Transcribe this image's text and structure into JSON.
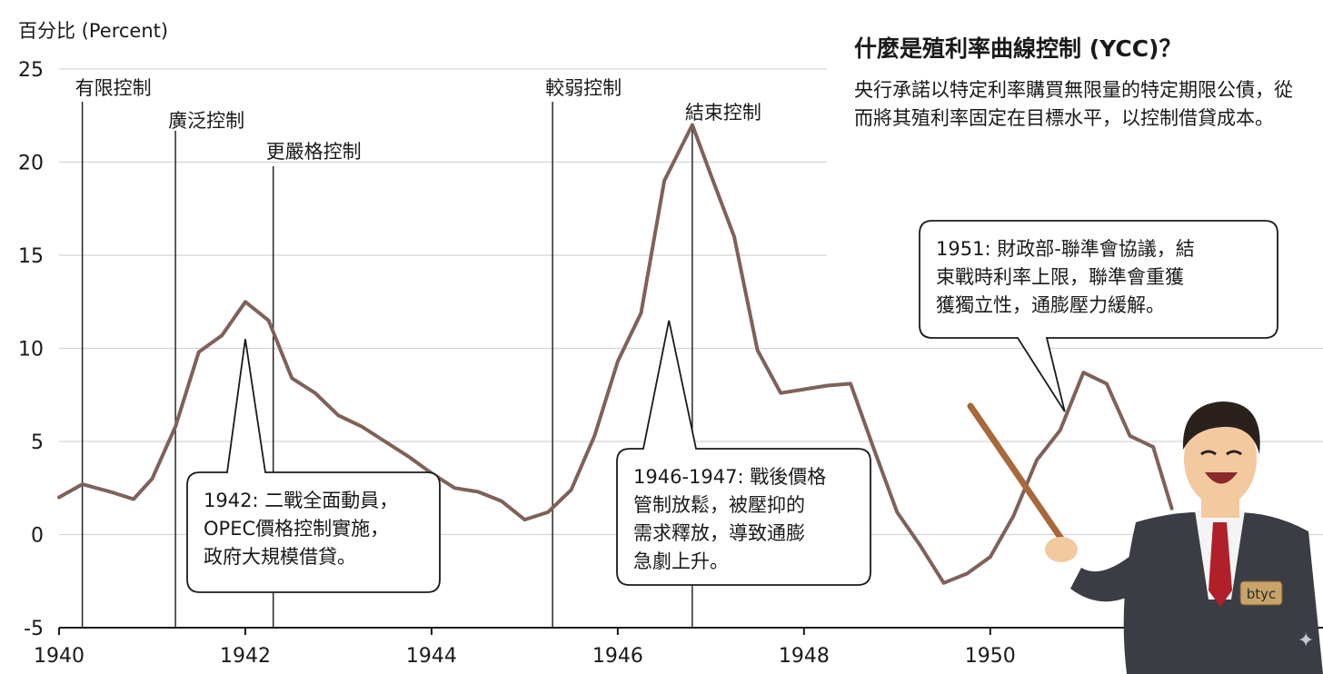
{
  "chart_data": {
    "type": "line",
    "ylabel": "百分比 (Percent)",
    "xlim": [
      1940,
      1952.1
    ],
    "ylim": [
      -5,
      25
    ],
    "x_ticks": [
      1940,
      1942,
      1944,
      1946,
      1948,
      1950
    ],
    "y_ticks": [
      -5,
      0,
      5,
      10,
      15,
      20,
      25
    ],
    "grid": "horizontal",
    "series": [
      {
        "color": "#7e6259",
        "points": [
          [
            1940.0,
            2.0
          ],
          [
            1940.25,
            2.7
          ],
          [
            1940.55,
            2.3
          ],
          [
            1940.8,
            1.9
          ],
          [
            1941.0,
            3.0
          ],
          [
            1941.25,
            5.8
          ],
          [
            1941.5,
            9.8
          ],
          [
            1941.75,
            10.7
          ],
          [
            1942.0,
            12.5
          ],
          [
            1942.25,
            11.5
          ],
          [
            1942.5,
            8.4
          ],
          [
            1942.75,
            7.6
          ],
          [
            1943.0,
            6.4
          ],
          [
            1943.25,
            5.8
          ],
          [
            1943.5,
            5.0
          ],
          [
            1943.75,
            4.2
          ],
          [
            1944.0,
            3.3
          ],
          [
            1944.25,
            2.5
          ],
          [
            1944.5,
            2.3
          ],
          [
            1944.75,
            1.8
          ],
          [
            1945.0,
            0.8
          ],
          [
            1945.25,
            1.2
          ],
          [
            1945.5,
            2.4
          ],
          [
            1945.75,
            5.3
          ],
          [
            1946.0,
            9.3
          ],
          [
            1946.25,
            11.9
          ],
          [
            1946.5,
            19.0
          ],
          [
            1946.8,
            22.0
          ],
          [
            1947.0,
            19.3
          ],
          [
            1947.25,
            16.0
          ],
          [
            1947.5,
            9.9
          ],
          [
            1947.75,
            7.6
          ],
          [
            1948.0,
            7.8
          ],
          [
            1948.25,
            8.0
          ],
          [
            1948.5,
            8.1
          ],
          [
            1948.75,
            4.6
          ],
          [
            1949.0,
            1.2
          ],
          [
            1949.25,
            -0.6
          ],
          [
            1949.5,
            -2.6
          ],
          [
            1949.75,
            -2.1
          ],
          [
            1950.0,
            -1.2
          ],
          [
            1950.25,
            1.0
          ],
          [
            1950.5,
            4.0
          ],
          [
            1950.75,
            5.6
          ],
          [
            1951.0,
            8.7
          ],
          [
            1951.25,
            8.1
          ],
          [
            1951.5,
            5.3
          ],
          [
            1951.75,
            4.7
          ],
          [
            1951.95,
            1.4
          ]
        ]
      }
    ],
    "phases": [
      {
        "x": 1940.25,
        "label": "有限控制"
      },
      {
        "x": 1941.25,
        "label": "廣泛控制"
      },
      {
        "x": 1942.3,
        "label": "更嚴格控制"
      },
      {
        "x": 1945.3,
        "label": "較弱控制"
      },
      {
        "x": 1946.8,
        "label": "結束控制"
      }
    ],
    "annotations": [
      {
        "lines": [
          "1942: 二戰全面動員，",
          "OPEC價格控制實施，",
          "政府大規模借貸。"
        ],
        "pointer": [
          1942.0,
          10.5
        ]
      },
      {
        "lines": [
          "1946-1947: 戰後價格",
          "管制放鬆，被壓抑的",
          "需求釋放，導致通膨",
          "急劇上升。"
        ],
        "pointer": [
          1946.55,
          11.5
        ]
      },
      {
        "lines": [
          "1951: 財政部-聯準會協議，結",
          "束戰時利率上限，聯準會重獲",
          "獲獨立性，通膨壓力緩解。"
        ],
        "pointer": [
          1950.8,
          6.6
        ]
      }
    ]
  },
  "info": {
    "title": "什麼是殖利率曲線控制 (YCC)？",
    "description": "央行承諾以特定利率購買無限量的特定期限公債，從而將其殖利率固定在目標水平，以控制借貸成本。"
  },
  "presenter": {
    "badge": "btyc",
    "skin": "#f3c9a0",
    "suit": "#3a3d44",
    "tie": "#b0202a",
    "hair": "#2a211c",
    "pointer": "#a8683a"
  },
  "watermark": "✦"
}
